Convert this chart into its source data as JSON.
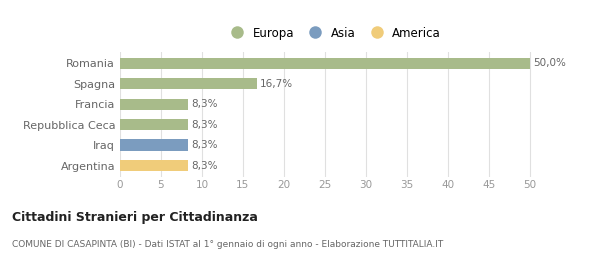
{
  "categories": [
    "Romania",
    "Spagna",
    "Francia",
    "Repubblica Ceca",
    "Iraq",
    "Argentina"
  ],
  "values": [
    50.0,
    16.7,
    8.3,
    8.3,
    8.3,
    8.3
  ],
  "labels": [
    "50,0%",
    "16,7%",
    "8,3%",
    "8,3%",
    "8,3%",
    "8,3%"
  ],
  "colors": [
    "#a8bb8a",
    "#a8bb8a",
    "#a8bb8a",
    "#a8bb8a",
    "#7b9cbf",
    "#f0cc7a"
  ],
  "legend_items": [
    {
      "label": "Europa",
      "color": "#a8bb8a"
    },
    {
      "label": "Asia",
      "color": "#7b9cbf"
    },
    {
      "label": "America",
      "color": "#f0cc7a"
    }
  ],
  "xlim": [
    0,
    52
  ],
  "xticks": [
    0,
    5,
    10,
    15,
    20,
    25,
    30,
    35,
    40,
    45,
    50
  ],
  "title": "Cittadini Stranieri per Cittadinanza",
  "subtitle": "COMUNE DI CASAPINTA (BI) - Dati ISTAT al 1° gennaio di ogni anno - Elaborazione TUTTITALIA.IT",
  "bg_color": "#ffffff",
  "plot_bg_color": "#ffffff",
  "grid_color": "#e0e0e0",
  "bar_height": 0.55,
  "label_color": "#666666",
  "tick_color": "#999999",
  "title_color": "#222222",
  "subtitle_color": "#666666"
}
